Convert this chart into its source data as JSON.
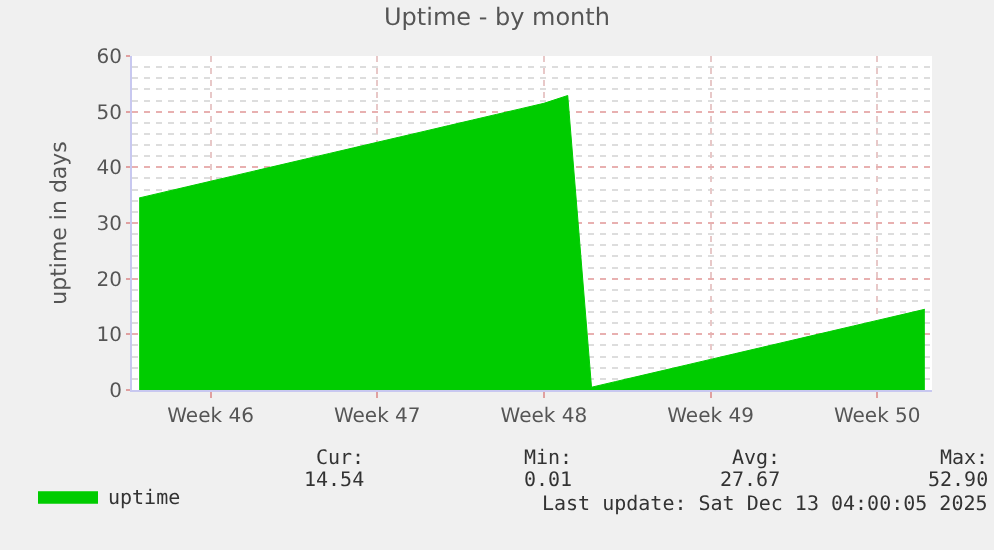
{
  "chart_data": {
    "type": "area",
    "title": "Uptime - by month",
    "ylabel": "uptime in days",
    "categories": [
      null,
      null,
      null,
      "Week 46",
      null,
      null,
      null,
      null,
      null,
      null,
      "Week 47",
      null,
      null,
      null,
      null,
      null,
      null,
      "Week 48",
      null,
      null,
      null,
      null,
      null,
      null,
      "Week 49",
      null,
      null,
      null,
      null,
      null,
      null,
      "Week 50",
      null,
      null
    ],
    "series": [
      {
        "name": "uptime",
        "color": "#00cc00",
        "values": [
          34.5,
          35.5,
          36.5,
          37.5,
          38.5,
          39.5,
          40.5,
          41.5,
          42.5,
          43.5,
          44.5,
          45.5,
          46.5,
          47.5,
          48.5,
          49.5,
          50.5,
          51.5,
          52.9,
          0.5,
          1.5,
          2.5,
          3.5,
          4.5,
          5.5,
          6.5,
          7.5,
          8.5,
          9.5,
          10.5,
          11.5,
          12.5,
          13.5,
          14.5
        ]
      }
    ],
    "ylim": [
      0,
      60
    ],
    "yticks": [
      0,
      10,
      20,
      30,
      40,
      50,
      60
    ],
    "grid": true,
    "legend": "bottom left",
    "annotations": [
      "Cur:",
      "Min:",
      "Avg:",
      "Max:",
      "14.54",
      "0.01",
      "27.67",
      "52.90",
      "Last update: Sat Dec 13 04:00:05 2025"
    ]
  }
}
